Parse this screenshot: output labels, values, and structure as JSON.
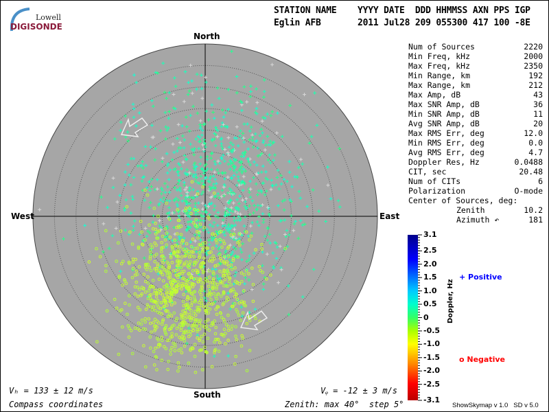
{
  "logo": {
    "line1": "Lowell",
    "line2": "DIGISONDE"
  },
  "header": {
    "labels": "STATION NAME    YYYY DATE  DDD HHMMSS AXN PPS IGP",
    "values": "Eglin AFB       2011 Jul28 209 055300 417 100 -8E"
  },
  "stats": [
    {
      "k": "Num of Sources",
      "v": "2220"
    },
    {
      "k": "Min Freq, kHz",
      "v": "2000"
    },
    {
      "k": "Max Freq, kHz",
      "v": "2350"
    },
    {
      "k": "Min Range, km",
      "v": "192"
    },
    {
      "k": "Max Range, km",
      "v": "212"
    },
    {
      "k": "Max Amp, dB",
      "v": "43"
    },
    {
      "k": "Max SNR Amp, dB",
      "v": "36"
    },
    {
      "k": "Min SNR Amp, dB",
      "v": "11"
    },
    {
      "k": "Avg SNR Amp, dB",
      "v": "20"
    },
    {
      "k": "Max RMS Err, deg",
      "v": "12.0"
    },
    {
      "k": "Min RMS Err, deg",
      "v": "0.0"
    },
    {
      "k": "Avg RMS Err, deg",
      "v": "4.7"
    },
    {
      "k": "Doppler Res, Hz",
      "v": "0.0488"
    },
    {
      "k": "CIT, sec",
      "v": "20.48"
    },
    {
      "k": "Num of CITs",
      "v": "6"
    },
    {
      "k": "Polarization",
      "v": "O-mode"
    }
  ],
  "center": {
    "title": "Center of Sources, deg:",
    "zenith_label": "Zenith",
    "zenith": "10.2",
    "azimuth_label": "Azimuth ↶",
    "azimuth": "181"
  },
  "compass": {
    "north": "North",
    "south": "South",
    "east": "East",
    "west": "West"
  },
  "footer": {
    "vh": "Vₕ = 133 ± 12 m/s",
    "vz": "Vᵩ = -12 ± 3 m/s",
    "coords": "Compass coordinates",
    "zenith": "Zenith: max 40°  step 5°",
    "version": "ShowSkymap v 1.0   SD v 5.0"
  },
  "legend": {
    "positive": "+ Positive",
    "negative": "o Negative",
    "positive_color": "#0000ff",
    "negative_color": "#ff0000"
  },
  "chart_data": {
    "type": "scatter",
    "projection": "polar-skymap",
    "zenith_max_deg": 40,
    "zenith_step_deg": 5,
    "colorbar": {
      "label": "Doppler, Hz",
      "min": -3.1,
      "max": 3.1,
      "ticks": [
        "3.1",
        "2.5",
        "2.0",
        "1.5",
        "1.0",
        "0.5",
        "0",
        "-0.5",
        "-1.0",
        "-1.5",
        "-2.0",
        "-2.5",
        "-3.1"
      ]
    },
    "num_sources": 2220,
    "velocity_arrows_azimuth_deg": [
      315,
      225
    ],
    "source_clusters": [
      {
        "sign": "positive",
        "marker": "+",
        "center_zenith_deg": 6,
        "center_azimuth_deg": 20,
        "spread_deg": 10,
        "doppler_hz": [
          0.2,
          0.9
        ],
        "count": 1000
      },
      {
        "sign": "negative",
        "marker": "o",
        "center_zenith_deg": 18,
        "center_azimuth_deg": 195,
        "spread_deg": 7,
        "doppler_hz": [
          -0.9,
          -0.3
        ],
        "count": 900
      }
    ]
  }
}
